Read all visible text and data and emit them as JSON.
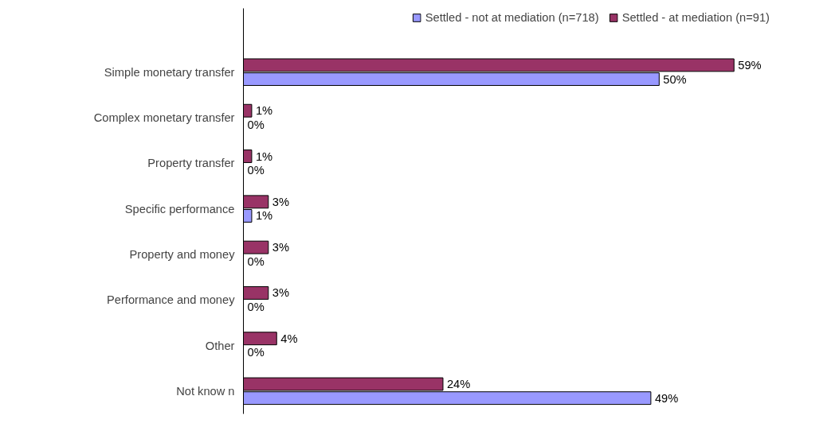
{
  "chart_data": {
    "type": "bar",
    "orientation": "horizontal",
    "categories": [
      "Simple monetary transfer",
      "Complex monetary transfer",
      "Property transfer",
      "Specific performance",
      "Property and money",
      "Performance and money",
      "Other",
      "Not know n"
    ],
    "series": [
      {
        "name": "Settled - not at mediation (n=718)",
        "color": "#9999ff",
        "values": [
          50,
          0,
          0,
          1,
          0,
          0,
          0,
          49
        ],
        "value_labels": [
          "50%",
          "0%",
          "0%",
          "1%",
          "0%",
          "0%",
          "0%",
          "49%"
        ]
      },
      {
        "name": "Settled - at mediation (n=91)",
        "color": "#993366",
        "values": [
          59,
          1,
          1,
          3,
          3,
          3,
          4,
          24
        ],
        "value_labels": [
          "59%",
          "1%",
          "1%",
          "3%",
          "3%",
          "3%",
          "4%",
          "24%"
        ]
      }
    ],
    "legend": "top right",
    "grid": false,
    "tick_labels": "y"
  }
}
